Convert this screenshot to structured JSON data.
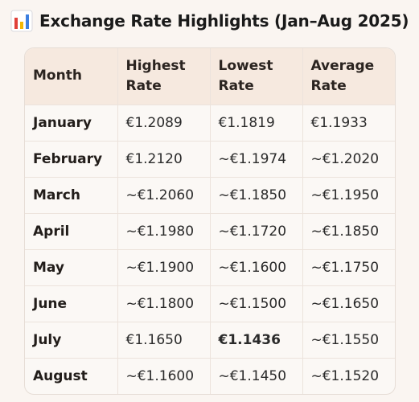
{
  "title": "Exchange Rate Highlights (Jan–Aug 2025)",
  "icon": "bar-chart-icon",
  "colors": {
    "background": "#faf5f1",
    "header_background": "#f6e9df",
    "border": "#e6ddd6"
  },
  "table": {
    "headers": {
      "month": "Month",
      "highest": "Highest Rate",
      "lowest": "Lowest Rate",
      "average": "Average Rate"
    },
    "rows": [
      {
        "month": "January",
        "highest": "€1.2089",
        "lowest": "€1.1819",
        "average": "€1.1933"
      },
      {
        "month": "February",
        "highest": "€1.2120",
        "lowest": "~€1.1974",
        "average": "~€1.2020"
      },
      {
        "month": "March",
        "highest": "~€1.2060",
        "lowest": "~€1.1850",
        "average": "~€1.1950"
      },
      {
        "month": "April",
        "highest": "~€1.1980",
        "lowest": "~€1.1720",
        "average": "~€1.1850"
      },
      {
        "month": "May",
        "highest": "~€1.1900",
        "lowest": "~€1.1600",
        "average": "~€1.1750"
      },
      {
        "month": "June",
        "highest": "~€1.1800",
        "lowest": "~€1.1500",
        "average": "~€1.1650"
      },
      {
        "month": "July",
        "highest": "€1.1650",
        "lowest": "€1.1436",
        "average": "~€1.1550"
      },
      {
        "month": "August",
        "highest": "~€1.1600",
        "lowest": "~€1.1450",
        "average": "~€1.1520"
      }
    ]
  }
}
